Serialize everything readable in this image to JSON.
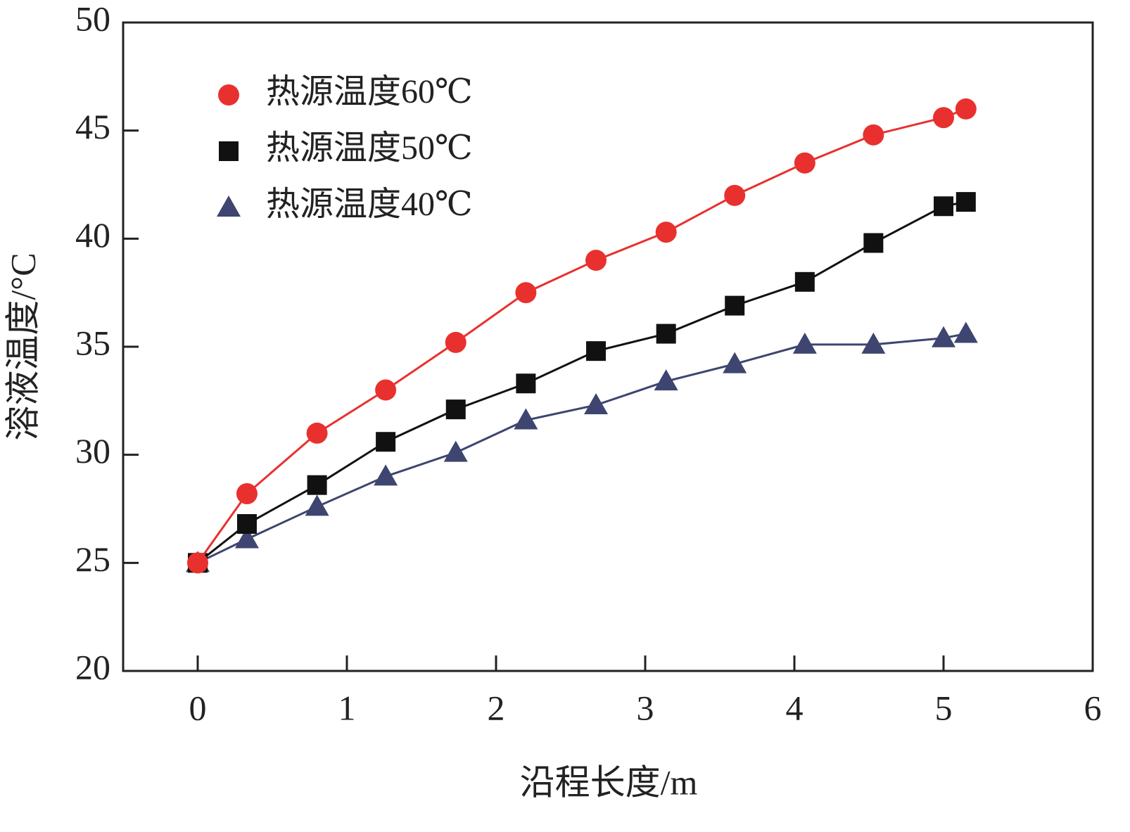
{
  "chart_data": {
    "type": "line",
    "xlabel": "沿程长度/m",
    "ylabel": "溶液温度/°C",
    "xlim": [
      -0.5,
      6
    ],
    "ylim": [
      20,
      50
    ],
    "xticks": [
      0,
      1,
      2,
      3,
      4,
      5,
      6
    ],
    "yticks": [
      20,
      25,
      30,
      35,
      40,
      45,
      50
    ],
    "x": [
      0,
      0.33,
      0.8,
      1.26,
      1.73,
      2.2,
      2.67,
      3.14,
      3.6,
      4.07,
      4.53,
      5.0,
      5.15
    ],
    "series": [
      {
        "name": "热源温度60℃",
        "color": "#e8312f",
        "marker": "circle",
        "values": [
          25,
          28.2,
          31.0,
          33.0,
          35.2,
          37.5,
          39.0,
          40.3,
          42.0,
          43.5,
          44.8,
          45.6,
          46.0
        ]
      },
      {
        "name": "热源温度50℃",
        "color": "#111111",
        "marker": "square",
        "values": [
          25,
          26.8,
          28.6,
          30.6,
          32.1,
          33.3,
          34.8,
          35.6,
          36.9,
          38.0,
          39.8,
          41.5,
          41.7
        ]
      },
      {
        "name": "热源温度40℃",
        "color": "#3d4570",
        "marker": "triangle",
        "values": [
          25,
          26.1,
          27.6,
          29.0,
          30.1,
          31.6,
          32.3,
          33.4,
          34.2,
          35.1,
          35.1,
          35.4,
          35.6
        ]
      }
    ]
  }
}
